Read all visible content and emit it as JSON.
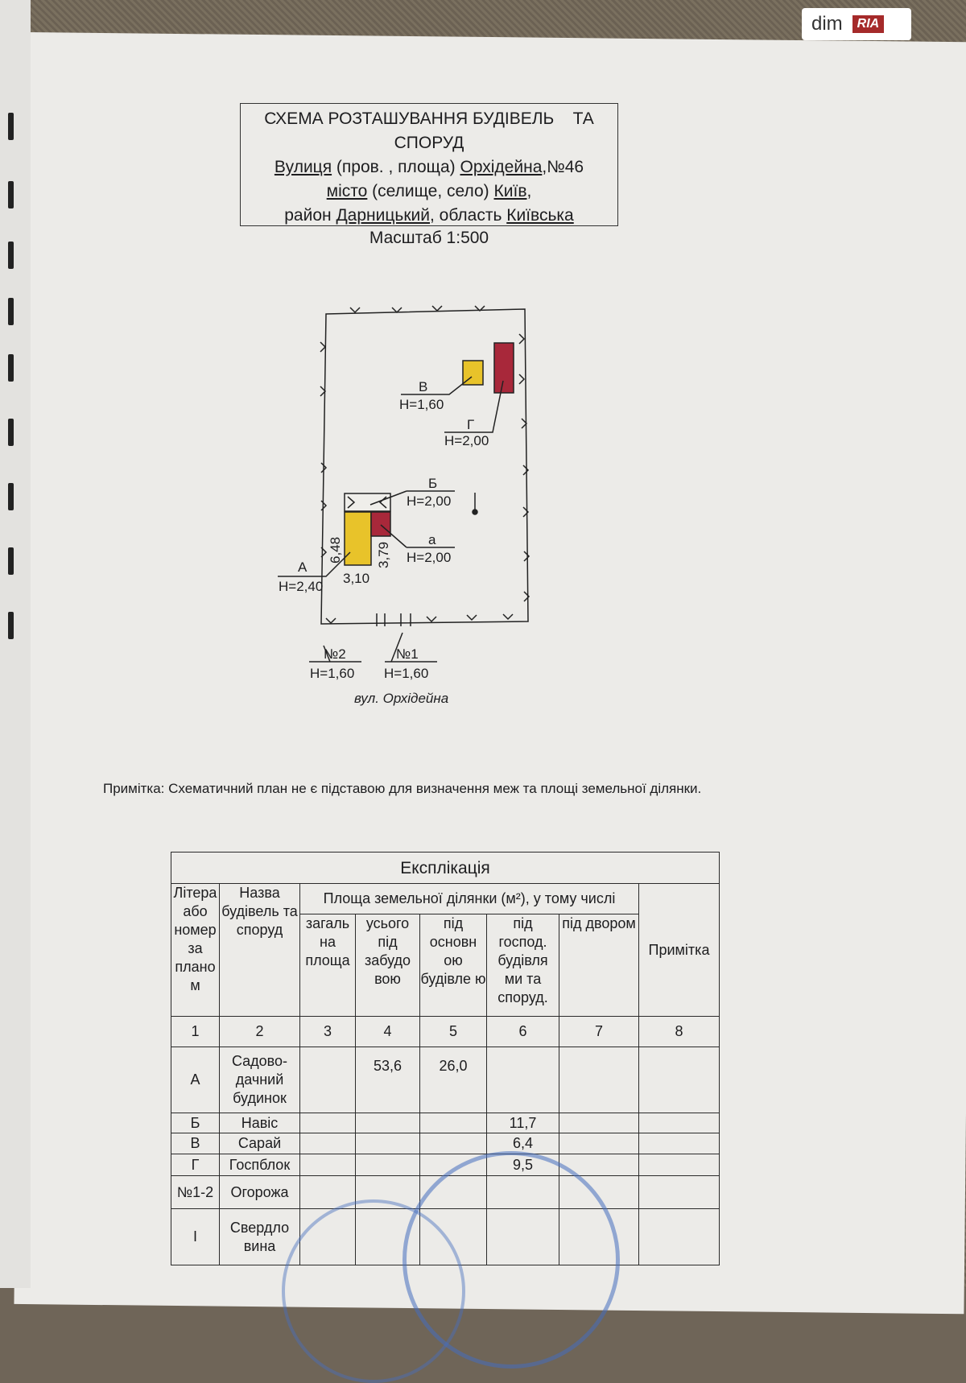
{
  "title_box": {
    "line1": "СХЕМА РОЗТАШУВАННЯ БУДІВЕЛЬ    ТА",
    "line2": "СПОРУД",
    "street_label": "Вулиця",
    "street_hint": " (пров. , площа) ",
    "street_name": "Орхідейна",
    "house_no": ",№46",
    "city_label": "місто",
    "city_hint": " (селище, село) ",
    "city_name": "Київ",
    ",": ",",
    "district_prefix": "район ",
    "district_name": "Дарницький",
    "region_prefix": ", область ",
    "region_name": "Київська"
  },
  "scale": "Масштаб 1:500",
  "plan": {
    "building_A": {
      "letter": "А",
      "height": "Н=2,40",
      "dim_long": "6,48",
      "dim_short": "3,10"
    },
    "building_a": {
      "letter": "а",
      "height": "Н=2,00",
      "dim": "3,79"
    },
    "building_B": {
      "letter": "Б",
      "height": "Н=2,00"
    },
    "building_V": {
      "letter": "В",
      "height": "Н=1,60"
    },
    "building_G": {
      "letter": "Г",
      "height": "Н=2,00"
    },
    "fence_2": {
      "label": "№2",
      "height": "Н=1,60"
    },
    "fence_1": {
      "label": "№1",
      "height": "Н=1,60"
    },
    "street": "вул. Орхідейна",
    "colors": {
      "residential": "#e8c32a",
      "auxiliary": "#a8283a"
    }
  },
  "note": "Примітка: Схематичний план не є підставою для визначення меж та площі земельної ділянки.",
  "explication": {
    "title": "Експлікація",
    "headers": {
      "c1": "Літера або номер за плано м",
      "c2": "Назва будівель та споруд",
      "group": "Площа земельної ділянки (м²), у тому числі",
      "c3": "загаль на площа",
      "c4": "усього під забудо вою",
      "c5": "під основн ою будівле ю",
      "c6": "під господ. будівля ми та споруд.",
      "c7": "під двором",
      "c8": "Примітка"
    },
    "numbers": [
      "1",
      "2",
      "3",
      "4",
      "5",
      "6",
      "7",
      "8"
    ],
    "rows": [
      {
        "c1": "А",
        "c2": "Садово-дачний будинок",
        "c3": "",
        "c4": "53,6",
        "c5": "26,0",
        "c6": "",
        "c7": "",
        "c8": ""
      },
      {
        "c1": "Б",
        "c2": "Навіс",
        "c3": "",
        "c4": "",
        "c5": "",
        "c6": "11,7",
        "c7": "",
        "c8": ""
      },
      {
        "c1": "В",
        "c2": "Сарай",
        "c3": "",
        "c4": "",
        "c5": "",
        "c6": "6,4",
        "c7": "",
        "c8": ""
      },
      {
        "c1": "Г",
        "c2": "Госпблок",
        "c3": "",
        "c4": "",
        "c5": "",
        "c6": "9,5",
        "c7": "",
        "c8": ""
      },
      {
        "c1": "№1-2",
        "c2": "Огорожа",
        "c3": "",
        "c4": "",
        "c5": "",
        "c6": "",
        "c7": "",
        "c8": ""
      },
      {
        "c1": "І",
        "c2": "Свердло вина",
        "c3": "",
        "c4": "",
        "c5": "",
        "c6": "",
        "c7": "",
        "c8": ""
      }
    ]
  },
  "watermark": {
    "dim": "dim",
    "ria": "RIA"
  }
}
